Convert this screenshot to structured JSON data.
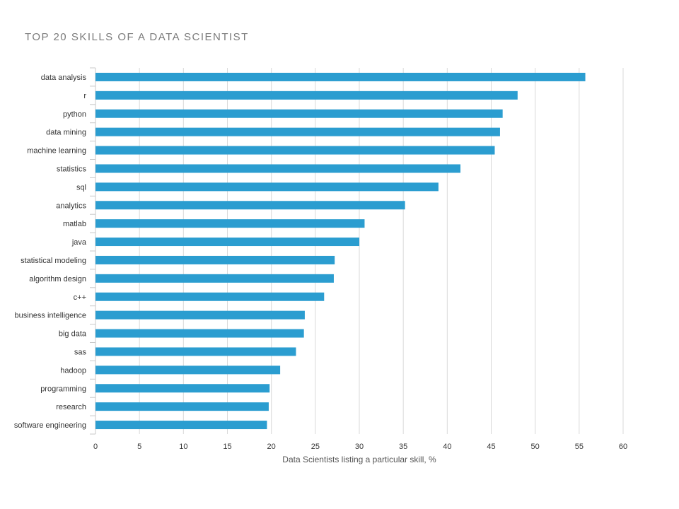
{
  "chart_data": {
    "type": "bar",
    "orientation": "horizontal",
    "title": "TOP 20 SKILLS OF A DATA SCIENTIST",
    "xlabel": "Data Scientists listing a particular skill, %",
    "ylabel": "",
    "xlim": [
      0,
      60
    ],
    "xticks": [
      0,
      5,
      10,
      15,
      20,
      25,
      30,
      35,
      40,
      45,
      50,
      55,
      60
    ],
    "grid": true,
    "bar_color": "#2b9dd0",
    "categories": [
      "data analysis",
      "r",
      "python",
      "data mining",
      "machine learning",
      "statistics",
      "sql",
      "analytics",
      "matlab",
      "java",
      "statistical modeling",
      "algorithm design",
      "c++",
      "business intelligence",
      "big data",
      "sas",
      "hadoop",
      "programming",
      "research",
      "software engineering"
    ],
    "values": [
      55.7,
      48.0,
      46.3,
      46.0,
      45.4,
      41.5,
      39.0,
      35.2,
      30.6,
      30.0,
      27.2,
      27.1,
      26.0,
      23.8,
      23.7,
      22.8,
      21.0,
      19.8,
      19.7,
      19.5
    ]
  }
}
